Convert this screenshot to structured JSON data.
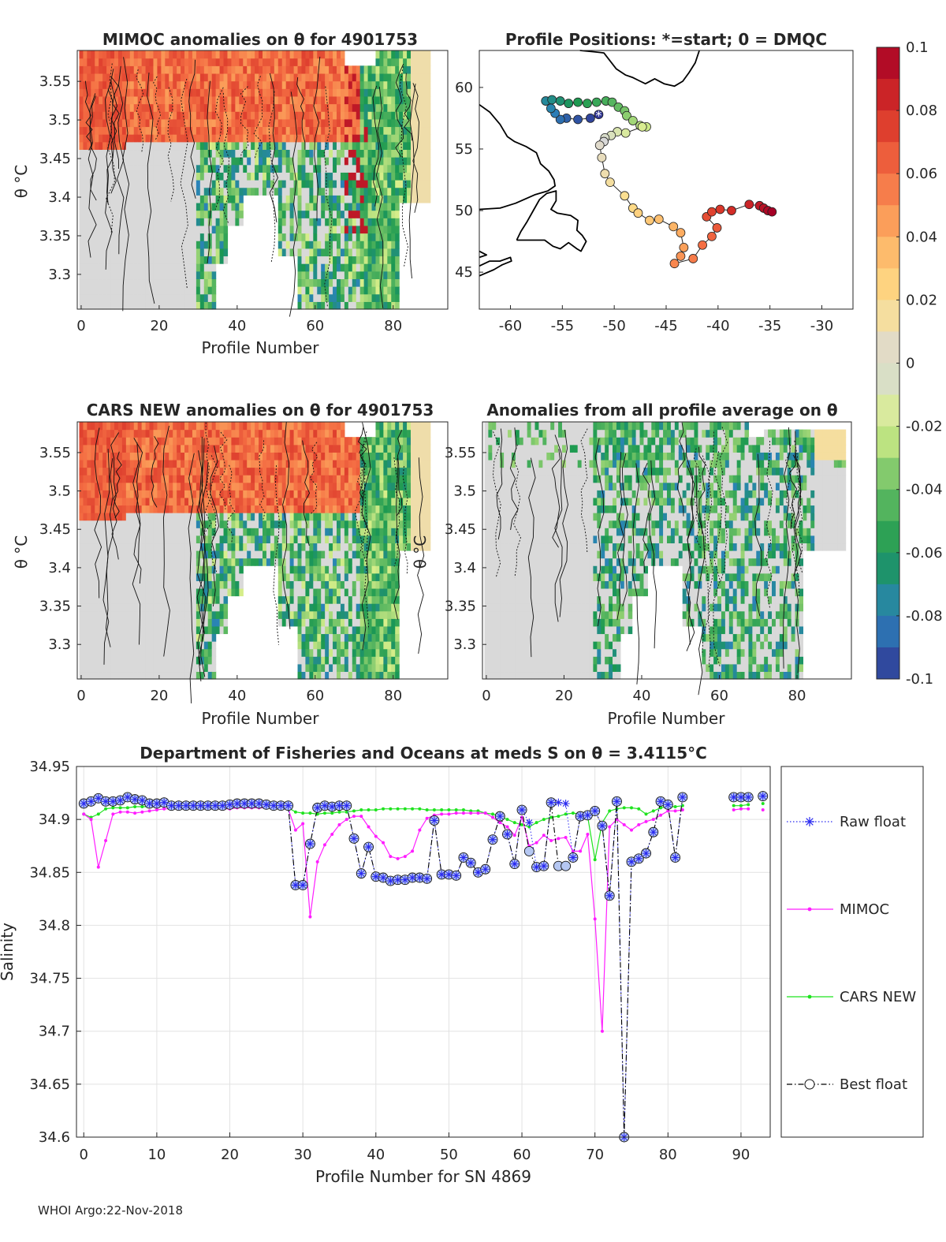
{
  "footer": "WHOI Argo:22-Nov-2018",
  "colors": {
    "raw": "#2a2af0",
    "mimoc": "#ff1eff",
    "cars": "#1fe31f",
    "best": "#000000",
    "land": "#000000"
  },
  "colorbar": {
    "ticks": [
      "0.1",
      "0.08",
      "0.06",
      "0.04",
      "0.02",
      "0",
      "-0.02",
      "-0.04",
      "-0.06",
      "-0.08",
      "-0.1"
    ],
    "stops": [
      "#a50026",
      "#d73027",
      "#f46d43",
      "#fdae61",
      "#fee08b",
      "#d9d9d9",
      "#d9ef8b",
      "#66bd63",
      "#1a9850",
      "#2b83ba",
      "#313695"
    ]
  },
  "chart_data": [
    {
      "id": "mimoc-anom",
      "type": "heatmap",
      "title": "MIMOC anomalies on θ  for 4901753",
      "xlabel": "Profile Number",
      "ylabel": "θ °C",
      "xlim": [
        -1,
        94
      ],
      "ylim": [
        3.255,
        3.59
      ],
      "xticks": [
        "0",
        "20",
        "40",
        "60",
        "80"
      ],
      "yticks": [
        "3.3",
        "3.35",
        "3.4",
        "3.45",
        "3.5",
        "3.55"
      ]
    },
    {
      "id": "positions",
      "type": "scatter",
      "title": "Profile Positions: *=start; 0 = DMQC",
      "xlim": [
        -63,
        -27
      ],
      "ylim": [
        42,
        63
      ],
      "xticks": [
        "-60",
        "-55",
        "-50",
        "-45",
        "-40",
        "-35",
        "-30"
      ],
      "yticks": [
        "45",
        "50",
        "55",
        "60"
      ],
      "track": [
        {
          "lon": -51.5,
          "lat": 57.8
        },
        {
          "lon": -52.3,
          "lat": 57.5
        },
        {
          "lon": -53.5,
          "lat": 57.4
        },
        {
          "lon": -54.6,
          "lat": 57.5
        },
        {
          "lon": -55.2,
          "lat": 57.4
        },
        {
          "lon": -55.7,
          "lat": 57.9
        },
        {
          "lon": -56.1,
          "lat": 58.3
        },
        {
          "lon": -56.6,
          "lat": 58.9
        },
        {
          "lon": -56.0,
          "lat": 59.0
        },
        {
          "lon": -55.2,
          "lat": 58.9
        },
        {
          "lon": -54.4,
          "lat": 58.7
        },
        {
          "lon": -53.5,
          "lat": 58.8
        },
        {
          "lon": -52.6,
          "lat": 58.7
        },
        {
          "lon": -51.7,
          "lat": 58.8
        },
        {
          "lon": -50.8,
          "lat": 58.9
        },
        {
          "lon": -50.2,
          "lat": 58.8
        },
        {
          "lon": -49.6,
          "lat": 58.4
        },
        {
          "lon": -49.0,
          "lat": 58.1
        },
        {
          "lon": -48.8,
          "lat": 57.7
        },
        {
          "lon": -48.2,
          "lat": 57.3
        },
        {
          "lon": -47.5,
          "lat": 56.9
        },
        {
          "lon": -46.9,
          "lat": 56.8
        },
        {
          "lon": -47.3,
          "lat": 56.8
        },
        {
          "lon": -48.9,
          "lat": 56.3
        },
        {
          "lon": -49.7,
          "lat": 56.4
        },
        {
          "lon": -50.3,
          "lat": 56.1
        },
        {
          "lon": -50.9,
          "lat": 55.9
        },
        {
          "lon": -51.0,
          "lat": 55.6
        },
        {
          "lon": -51.4,
          "lat": 55.3
        },
        {
          "lon": -51.2,
          "lat": 54.3
        },
        {
          "lon": -50.9,
          "lat": 53.0
        },
        {
          "lon": -50.4,
          "lat": 52.3
        },
        {
          "lon": -49.0,
          "lat": 51.2
        },
        {
          "lon": -48.2,
          "lat": 50.2
        },
        {
          "lon": -47.7,
          "lat": 49.8
        },
        {
          "lon": -46.6,
          "lat": 49.2
        },
        {
          "lon": -45.7,
          "lat": 49.3
        },
        {
          "lon": -44.3,
          "lat": 48.7
        },
        {
          "lon": -43.6,
          "lat": 48.2
        },
        {
          "lon": -43.3,
          "lat": 47.0
        },
        {
          "lon": -43.6,
          "lat": 46.3
        },
        {
          "lon": -44.2,
          "lat": 45.7
        },
        {
          "lon": -42.4,
          "lat": 46.1
        },
        {
          "lon": -41.5,
          "lat": 47.2
        },
        {
          "lon": -40.6,
          "lat": 47.9
        },
        {
          "lon": -40.1,
          "lat": 48.6
        },
        {
          "lon": -41.1,
          "lat": 49.5
        },
        {
          "lon": -40.6,
          "lat": 49.9
        },
        {
          "lon": -39.8,
          "lat": 50.1
        },
        {
          "lon": -38.7,
          "lat": 50.0
        },
        {
          "lon": -37.0,
          "lat": 50.5
        },
        {
          "lon": -36.0,
          "lat": 50.4
        },
        {
          "lon": -35.6,
          "lat": 50.2
        },
        {
          "lon": -35.2,
          "lat": 50.0
        },
        {
          "lon": -34.8,
          "lat": 49.9
        }
      ]
    },
    {
      "id": "cars-anom",
      "type": "heatmap",
      "title": "CARS NEW anomalies on θ for 4901753",
      "xlabel": "Profile Number",
      "ylabel": "θ °C",
      "xlim": [
        -1,
        94
      ],
      "ylim": [
        3.255,
        3.59
      ],
      "xticks": [
        "0",
        "20",
        "40",
        "60",
        "80"
      ],
      "yticks": [
        "3.3",
        "3.35",
        "3.4",
        "3.45",
        "3.5",
        "3.55"
      ]
    },
    {
      "id": "avg-anom",
      "type": "heatmap",
      "title": "Anomalies from all profile average on θ",
      "xlabel": "Profile Number",
      "ylabel": "θ °C",
      "xlim": [
        -1,
        94
      ],
      "ylim": [
        3.255,
        3.59
      ],
      "xticks": [
        "0",
        "20",
        "40",
        "60",
        "80"
      ],
      "yticks": [
        "3.3",
        "3.35",
        "3.4",
        "3.45",
        "3.5",
        "3.55"
      ]
    },
    {
      "id": "salinity",
      "type": "line",
      "title": "Department of Fisheries and Oceans at meds S on θ = 3.4115°C",
      "xlabel": "Profile Number for SN 4869",
      "ylabel": "Salinity",
      "xlim": [
        -1,
        94
      ],
      "ylim": [
        34.6,
        34.95
      ],
      "xticks": [
        "0",
        "10",
        "20",
        "30",
        "40",
        "50",
        "60",
        "70",
        "80",
        "90"
      ],
      "yticks": [
        "34.6",
        "34.65",
        "34.7",
        "34.75",
        "34.8",
        "34.85",
        "34.9",
        "34.95"
      ],
      "legend": [
        "Raw float",
        "MIMOC",
        "CARS NEW",
        "Best float"
      ],
      "x": [
        0,
        1,
        2,
        3,
        4,
        5,
        6,
        7,
        8,
        9,
        10,
        11,
        12,
        13,
        14,
        15,
        16,
        17,
        18,
        19,
        20,
        21,
        22,
        23,
        24,
        25,
        26,
        27,
        28,
        29,
        30,
        31,
        32,
        33,
        34,
        35,
        36,
        37,
        38,
        39,
        40,
        41,
        42,
        43,
        44,
        45,
        46,
        47,
        48,
        49,
        50,
        51,
        52,
        53,
        54,
        55,
        56,
        57,
        58,
        59,
        60,
        61,
        62,
        63,
        64,
        65,
        66,
        67,
        68,
        69,
        70,
        71,
        72,
        73,
        74,
        75,
        76,
        77,
        78,
        79,
        80,
        81,
        82,
        89,
        90,
        91,
        93
      ],
      "series": [
        {
          "name": "Raw float",
          "values": [
            34.915,
            34.917,
            34.92,
            34.917,
            34.917,
            34.918,
            34.921,
            34.919,
            34.918,
            34.915,
            34.915,
            34.916,
            34.913,
            34.913,
            34.913,
            34.913,
            34.913,
            34.913,
            34.913,
            34.913,
            34.914,
            34.915,
            34.915,
            34.915,
            34.915,
            34.914,
            34.913,
            34.913,
            34.913,
            34.838,
            34.838,
            34.877,
            34.911,
            34.913,
            34.912,
            34.913,
            34.913,
            34.882,
            34.849,
            34.874,
            34.846,
            34.845,
            34.842,
            34.843,
            34.843,
            34.845,
            34.845,
            34.844,
            34.899,
            34.848,
            34.848,
            34.847,
            34.864,
            34.859,
            34.85,
            34.853,
            34.881,
            34.903,
            34.886,
            34.858,
            34.909,
            34.897,
            34.855,
            34.856,
            34.916,
            34.916,
            34.915,
            34.864,
            34.903,
            34.904,
            34.908,
            34.894,
            34.828,
            34.917,
            34.6,
            34.86,
            34.863,
            34.868,
            34.888,
            34.917,
            34.914,
            34.864,
            34.921,
            34.921,
            34.921,
            34.921,
            34.922
          ]
        },
        {
          "name": "MIMOC",
          "values": [
            34.905,
            34.9,
            34.855,
            34.88,
            34.905,
            34.907,
            34.907,
            34.906,
            34.907,
            34.908,
            34.909,
            34.91,
            34.91,
            34.91,
            34.91,
            34.91,
            34.91,
            34.91,
            34.91,
            34.91,
            34.91,
            34.911,
            34.911,
            34.911,
            34.911,
            34.911,
            34.911,
            34.911,
            34.91,
            34.89,
            34.896,
            34.808,
            34.86,
            34.876,
            34.886,
            34.895,
            34.9,
            34.903,
            34.903,
            34.893,
            34.884,
            34.878,
            34.865,
            34.863,
            34.865,
            34.87,
            34.89,
            34.901,
            34.904,
            34.905,
            34.905,
            34.906,
            34.906,
            34.906,
            34.906,
            34.906,
            34.902,
            34.897,
            34.893,
            34.885,
            34.902,
            34.875,
            34.878,
            34.885,
            34.88,
            34.882,
            34.883,
            34.87,
            34.87,
            34.886,
            34.806,
            34.7,
            34.893,
            34.9,
            34.895,
            34.89,
            34.895,
            34.898,
            34.9,
            34.904,
            34.908,
            34.908,
            34.909,
            34.909,
            34.91,
            34.91,
            34.909
          ]
        },
        {
          "name": "CARS NEW",
          "values": [
            34.905,
            34.902,
            34.905,
            34.91,
            34.911,
            34.911,
            34.911,
            34.912,
            34.912,
            34.912,
            34.912,
            34.913,
            34.913,
            34.913,
            34.913,
            34.913,
            34.913,
            34.913,
            34.913,
            34.913,
            34.913,
            34.913,
            34.913,
            34.913,
            34.913,
            34.913,
            34.913,
            34.912,
            34.911,
            34.907,
            34.906,
            34.906,
            34.905,
            34.906,
            34.906,
            34.907,
            34.907,
            34.908,
            34.909,
            34.909,
            34.909,
            34.91,
            34.91,
            34.91,
            34.91,
            34.91,
            34.91,
            34.909,
            34.909,
            34.909,
            34.909,
            34.909,
            34.909,
            34.908,
            34.908,
            34.906,
            34.905,
            34.903,
            34.9,
            34.897,
            34.895,
            34.893,
            34.897,
            34.9,
            34.902,
            34.903,
            34.905,
            34.906,
            34.905,
            34.903,
            34.862,
            34.897,
            34.908,
            34.91,
            34.911,
            34.911,
            34.91,
            34.905,
            34.908,
            34.911,
            34.912,
            34.912,
            34.913,
            34.913,
            34.913,
            34.914,
            34.915
          ]
        },
        {
          "name": "Best float",
          "values": [
            34.915,
            34.917,
            34.92,
            34.917,
            34.917,
            34.918,
            34.921,
            34.919,
            34.918,
            34.915,
            34.915,
            34.916,
            34.913,
            34.913,
            34.913,
            34.913,
            34.913,
            34.913,
            34.913,
            34.913,
            34.914,
            34.915,
            34.915,
            34.915,
            34.915,
            34.914,
            34.913,
            34.913,
            34.913,
            34.838,
            34.838,
            34.877,
            34.911,
            34.913,
            34.912,
            34.913,
            34.913,
            34.882,
            34.849,
            34.874,
            34.846,
            34.845,
            34.842,
            34.843,
            34.843,
            34.845,
            34.845,
            34.844,
            34.899,
            34.848,
            34.848,
            34.847,
            34.864,
            34.859,
            34.85,
            34.853,
            34.881,
            34.903,
            34.886,
            34.858,
            34.909,
            34.87,
            34.855,
            34.856,
            34.916,
            34.856,
            34.856,
            34.864,
            34.903,
            34.904,
            34.908,
            34.894,
            34.828,
            34.917,
            34.6,
            34.86,
            34.863,
            34.868,
            34.888,
            34.917,
            34.914,
            34.864,
            34.921,
            34.921,
            34.921,
            34.921,
            34.922
          ]
        }
      ]
    }
  ]
}
